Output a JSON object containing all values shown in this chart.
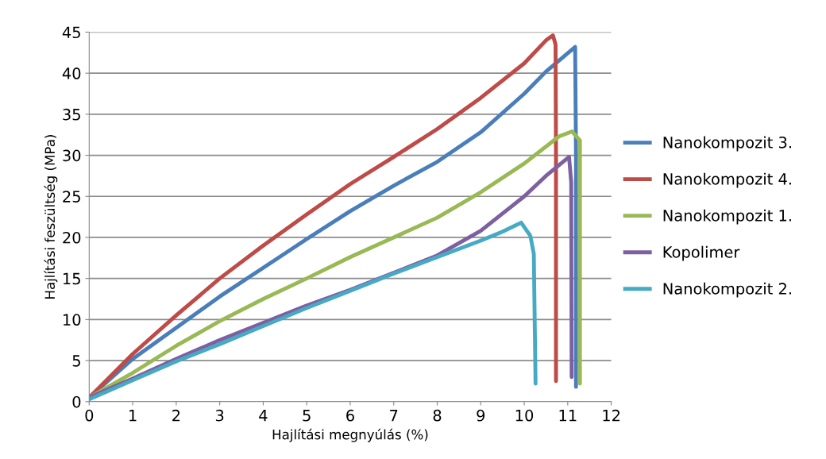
{
  "chart_data": {
    "type": "line",
    "xlabel": "Hajlítási megnyúlás (%)",
    "ylabel": "Hajlítási feszültség (MPa)",
    "xlim": [
      0,
      12
    ],
    "xticks": [
      0,
      1,
      2,
      3,
      4,
      5,
      6,
      7,
      8,
      9,
      10,
      11,
      12
    ],
    "ylim": [
      0,
      45
    ],
    "yticks": [
      0,
      5,
      10,
      15,
      20,
      25,
      30,
      35,
      40,
      45
    ],
    "grid": "y",
    "legend": "right",
    "marker": "none",
    "line_style": "solid",
    "series": [
      {
        "name": "Nanokompozit 3.",
        "color": "#4a7ebb",
        "x": [
          0,
          1,
          2,
          3,
          4,
          5,
          6,
          7,
          8,
          9,
          10,
          10.5,
          11.17,
          11.19,
          11.19
        ],
        "values": [
          0.5,
          5.2,
          9,
          12.8,
          16.3,
          19.8,
          23.2,
          26.3,
          29.2,
          32.8,
          37.5,
          40.2,
          43.2,
          30,
          1.8
        ]
      },
      {
        "name": "Nanokompozit 4.",
        "color": "#be4b48",
        "x": [
          0,
          1,
          2,
          3,
          4,
          5,
          6,
          7,
          8,
          9,
          10,
          10.5,
          10.66,
          10.72,
          10.73,
          10.73
        ],
        "values": [
          0.5,
          5.8,
          10.5,
          15,
          19,
          22.8,
          26.5,
          29.8,
          33.2,
          37,
          41.2,
          44,
          44.6,
          43.5,
          30,
          2.5
        ]
      },
      {
        "name": "Nanokompozit 1.",
        "color": "#98b954",
        "x": [
          0,
          1,
          2,
          3,
          4,
          5,
          6,
          7,
          8,
          9,
          10,
          10.8,
          11.1,
          11.28,
          11.28
        ],
        "values": [
          0.5,
          3.5,
          6.8,
          9.8,
          12.5,
          15,
          17.6,
          20,
          22.4,
          25.5,
          29,
          32.3,
          32.9,
          31.8,
          2.2
        ]
      },
      {
        "name": "Kopolimer",
        "color": "#7d60a0",
        "x": [
          0,
          1,
          2,
          3,
          4,
          5,
          6,
          7,
          8,
          9,
          10,
          10.5,
          11.03,
          11.08,
          11.09
        ],
        "values": [
          0.5,
          2.8,
          5.2,
          7.5,
          9.6,
          11.7,
          13.6,
          15.7,
          17.8,
          20.8,
          25,
          27.5,
          29.8,
          26.7,
          3.0
        ]
      },
      {
        "name": "Nanokompozit 2.",
        "color": "#46aac5",
        "x": [
          0,
          1,
          2,
          3,
          4,
          5,
          6,
          7,
          8,
          9,
          9.5,
          9.93,
          10.14,
          10.22,
          10.26
        ],
        "values": [
          0.3,
          2.6,
          4.9,
          7,
          9.2,
          11.4,
          13.5,
          15.6,
          17.6,
          19.6,
          20.7,
          21.8,
          20.2,
          18.0,
          2.2
        ]
      }
    ]
  }
}
